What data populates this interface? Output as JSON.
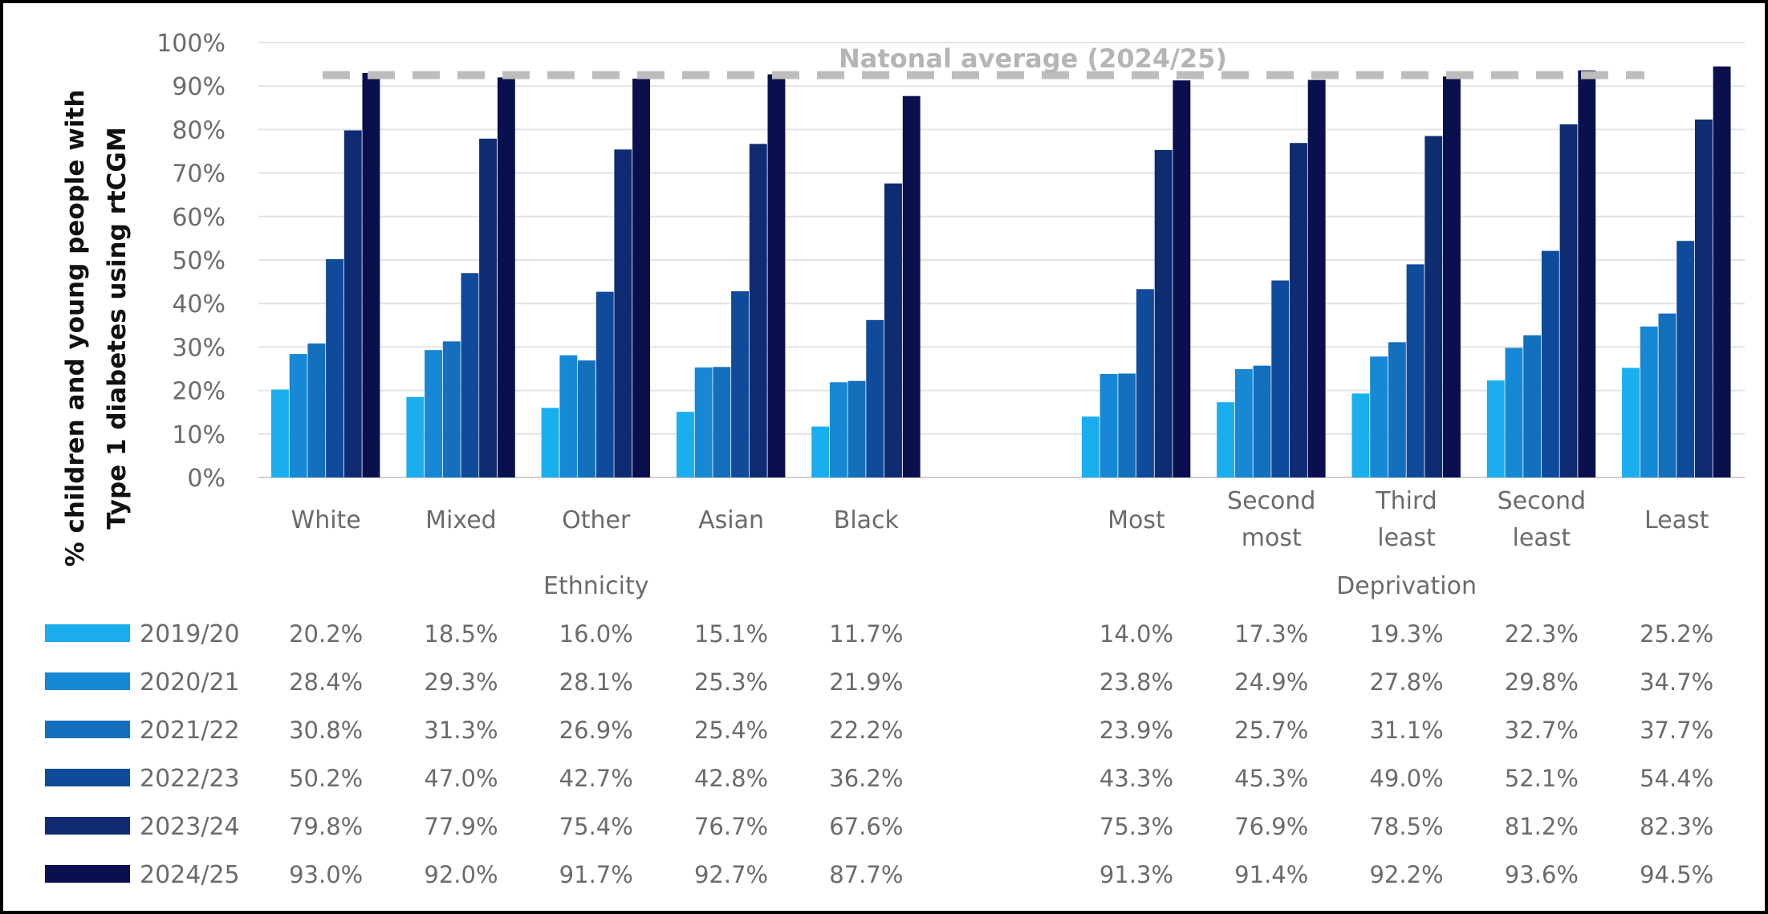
{
  "chart_data": {
    "type": "bar",
    "ylabel": [
      "% children and young people with",
      "Type 1 diabetes using rtCGM"
    ],
    "ylim": [
      0,
      100
    ],
    "yticks": [
      "0%",
      "10%",
      "20%",
      "30%",
      "40%",
      "50%",
      "60%",
      "70%",
      "80%",
      "90%",
      "100%"
    ],
    "grid": true,
    "groups": [
      {
        "name": "Ethnicity",
        "categories": [
          [
            "White"
          ],
          [
            "Mixed"
          ],
          [
            "Other"
          ],
          [
            "Asian"
          ],
          [
            "Black"
          ]
        ]
      },
      {
        "name": "Deprivation",
        "categories": [
          [
            "Most"
          ],
          [
            "Second",
            "most"
          ],
          [
            "Third",
            "least"
          ],
          [
            "Second",
            "least"
          ],
          [
            "Least"
          ]
        ]
      }
    ],
    "series": [
      {
        "name": "2019/20",
        "color": "#1aaeef",
        "values": [
          20.2,
          18.5,
          16.0,
          15.1,
          11.7,
          14.0,
          17.3,
          19.3,
          22.3,
          25.2
        ],
        "labels": [
          "20.2%",
          "18.5%",
          "16.0%",
          "15.1%",
          "11.7%",
          "14.0%",
          "17.3%",
          "19.3%",
          "22.3%",
          "25.2%"
        ]
      },
      {
        "name": "2020/21",
        "color": "#1788d6",
        "values": [
          28.4,
          29.3,
          28.1,
          25.3,
          21.9,
          23.8,
          24.9,
          27.8,
          29.8,
          34.7
        ],
        "labels": [
          "28.4%",
          "29.3%",
          "28.1%",
          "25.3%",
          "21.9%",
          "23.8%",
          "24.9%",
          "27.8%",
          "29.8%",
          "34.7%"
        ]
      },
      {
        "name": "2021/22",
        "color": "#1470bc",
        "values": [
          30.8,
          31.3,
          26.9,
          25.4,
          22.2,
          23.9,
          25.7,
          31.1,
          32.7,
          37.7
        ],
        "labels": [
          "30.8%",
          "31.3%",
          "26.9%",
          "25.4%",
          "22.2%",
          "23.9%",
          "25.7%",
          "31.1%",
          "32.7%",
          "37.7%"
        ]
      },
      {
        "name": "2022/23",
        "color": "#104a9a",
        "values": [
          50.2,
          47.0,
          42.7,
          42.8,
          36.2,
          43.3,
          45.3,
          49.0,
          52.1,
          54.4
        ],
        "labels": [
          "50.2%",
          "47.0%",
          "42.7%",
          "42.8%",
          "36.2%",
          "43.3%",
          "45.3%",
          "49.0%",
          "52.1%",
          "54.4%"
        ]
      },
      {
        "name": "2023/24",
        "color": "#0f2c72",
        "values": [
          79.8,
          77.9,
          75.4,
          76.7,
          67.6,
          75.3,
          76.9,
          78.5,
          81.2,
          82.3
        ],
        "labels": [
          "79.8%",
          "77.9%",
          "75.4%",
          "76.7%",
          "67.6%",
          "75.3%",
          "76.9%",
          "78.5%",
          "81.2%",
          "82.3%"
        ]
      },
      {
        "name": "2024/25",
        "color": "#0a0f4d",
        "values": [
          93.0,
          92.0,
          91.7,
          92.7,
          87.7,
          91.3,
          91.4,
          92.2,
          93.6,
          94.5
        ],
        "labels": [
          "93.0%",
          "92.0%",
          "91.7%",
          "92.7%",
          "87.7%",
          "91.3%",
          "91.4%",
          "92.2%",
          "93.6%",
          "94.5%"
        ]
      }
    ],
    "reference_line": {
      "label": "Natonal average (2024/25)",
      "value": 92.5,
      "color": "#bdbdbd"
    }
  }
}
